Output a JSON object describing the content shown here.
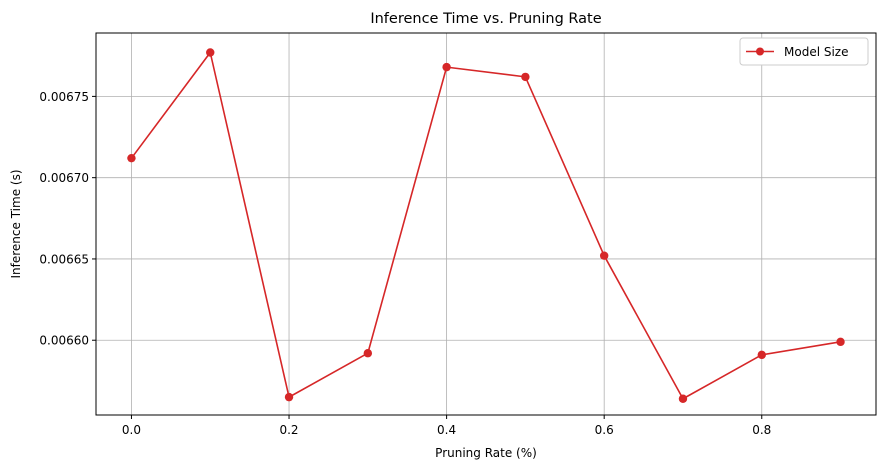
{
  "chart_data": {
    "type": "line",
    "title": "Inference Time vs. Pruning Rate",
    "xlabel": "Pruning Rate (%)",
    "ylabel": "Inference Time (s)",
    "x": [
      0.0,
      0.1,
      0.2,
      0.3,
      0.4,
      0.5,
      0.6,
      0.7,
      0.8,
      0.9
    ],
    "series": [
      {
        "name": "Model Size",
        "color": "#d62728",
        "marker": "circle",
        "values": [
          0.006712,
          0.006777,
          0.006565,
          0.006592,
          0.006768,
          0.006762,
          0.006652,
          0.006564,
          0.006591,
          0.006599
        ]
      }
    ],
    "xticks": [
      "0.0",
      "0.2",
      "0.4",
      "0.6",
      "0.8"
    ],
    "yticks": [
      "0.00660",
      "0.00665",
      "0.00670",
      "0.00675"
    ],
    "xlim": [
      -0.045,
      0.945
    ],
    "ylim": [
      0.006554,
      0.006789
    ],
    "grid": true,
    "legend_position": "top-right"
  }
}
